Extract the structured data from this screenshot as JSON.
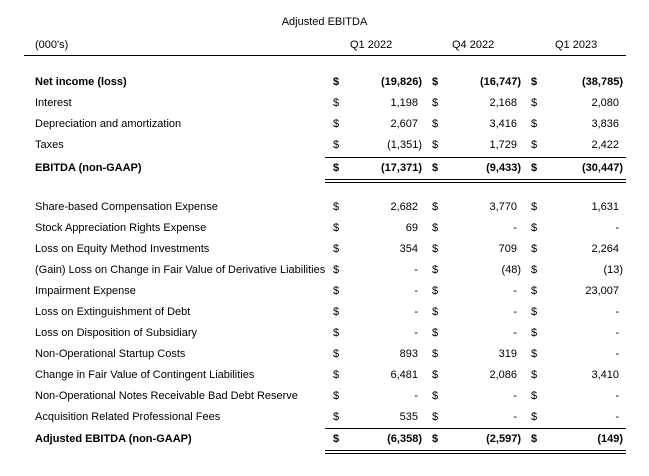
{
  "title": "Adjusted EBITDA",
  "header": {
    "units": "(000's)",
    "columns": [
      "Q1 2022",
      "Q4 2022",
      "Q1 2023"
    ]
  },
  "currency_symbol": "$",
  "section1": [
    {
      "label": "Net income (loss)",
      "values": [
        "(19,826)",
        "(16,747)",
        "(38,785)"
      ],
      "bold": true
    },
    {
      "label": "Interest",
      "values": [
        "1,198",
        "2,168",
        "2,080"
      ]
    },
    {
      "label": "Depreciation and amortization",
      "values": [
        "2,607",
        "3,416",
        "3,836"
      ]
    },
    {
      "label": "Taxes",
      "values": [
        "(1,351)",
        "1,729",
        "2,422"
      ]
    }
  ],
  "subtotal": {
    "label": "EBITDA (non-GAAP)",
    "values": [
      "(17,371)",
      "(9,433)",
      "(30,447)"
    ]
  },
  "section2": [
    {
      "label": "Share-based Compensation Expense",
      "values": [
        "2,682",
        "3,770",
        "1,631"
      ]
    },
    {
      "label": "Stock Appreciation Rights Expense",
      "values": [
        "69",
        "-",
        "-"
      ]
    },
    {
      "label": "Loss on Equity Method Investments",
      "values": [
        "354",
        "709",
        "2,264"
      ]
    },
    {
      "label": "(Gain) Loss on Change in Fair Value of Derivative Liabilities",
      "values": [
        "-",
        "(48)",
        "(13)"
      ]
    },
    {
      "label": "Impairment Expense",
      "values": [
        "-",
        "-",
        "23,007"
      ]
    },
    {
      "label": "Loss on Extinguishment of Debt",
      "values": [
        "-",
        "-",
        "-"
      ]
    },
    {
      "label": "Loss on Disposition of Subsidiary",
      "values": [
        "-",
        "-",
        "-"
      ]
    },
    {
      "label": "Non-Operational Startup Costs",
      "values": [
        "893",
        "319",
        "-"
      ]
    },
    {
      "label": "Change in Fair Value of Contingent Liabilities",
      "values": [
        "6,481",
        "2,086",
        "3,410"
      ]
    },
    {
      "label": "Non-Operational Notes Receivable Bad Debt Reserve",
      "values": [
        "-",
        "-",
        "-"
      ]
    },
    {
      "label": "Acquisition Related Professional Fees",
      "values": [
        "535",
        "-",
        "-"
      ]
    }
  ],
  "total": {
    "label": "Adjusted EBITDA (non-GAAP)",
    "values": [
      "(6,358)",
      "(2,597)",
      "(149)"
    ]
  }
}
